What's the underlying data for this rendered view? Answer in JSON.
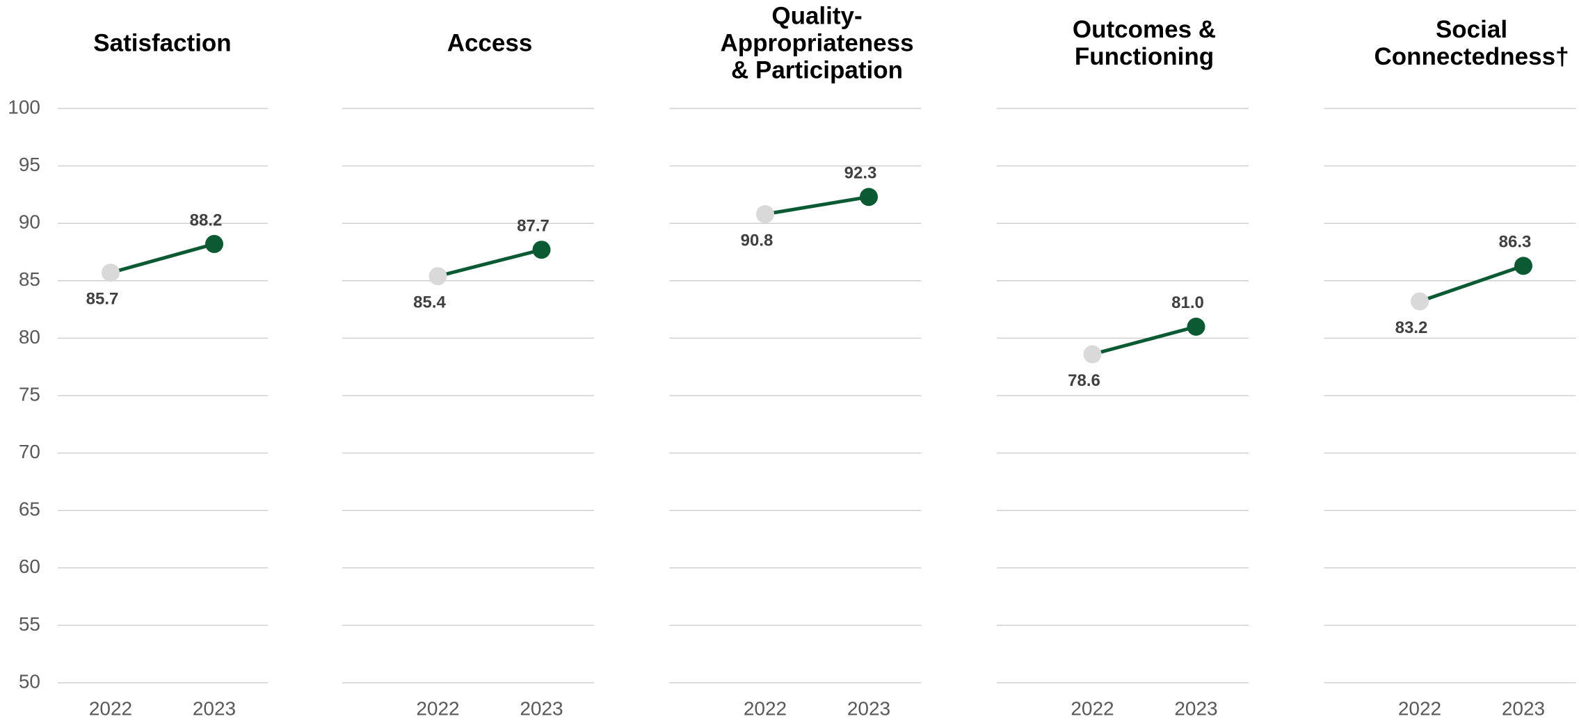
{
  "chart_data": [
    {
      "type": "line",
      "title": [
        "Satisfaction"
      ],
      "categories": [
        "2022",
        "2023"
      ],
      "values": [
        85.7,
        88.2
      ],
      "point_colors": [
        "#d9d9d9",
        "#0b5a34"
      ],
      "line_color": "#0b5a34",
      "ylim": [
        50,
        100
      ],
      "yticks": [
        50,
        55,
        60,
        65,
        70,
        75,
        80,
        85,
        90,
        95,
        100
      ],
      "grid": true
    },
    {
      "type": "line",
      "title": [
        "Access"
      ],
      "categories": [
        "2022",
        "2023"
      ],
      "values": [
        85.4,
        87.7
      ],
      "point_colors": [
        "#d9d9d9",
        "#0b5a34"
      ],
      "line_color": "#0b5a34",
      "ylim": [
        50,
        100
      ],
      "yticks": [
        50,
        55,
        60,
        65,
        70,
        75,
        80,
        85,
        90,
        95,
        100
      ],
      "grid": true
    },
    {
      "type": "line",
      "title": [
        "Quality-",
        "Appropriateness",
        "& Participation"
      ],
      "categories": [
        "2022",
        "2023"
      ],
      "values": [
        90.8,
        92.3
      ],
      "point_colors": [
        "#d9d9d9",
        "#0b5a34"
      ],
      "line_color": "#0b5a34",
      "ylim": [
        50,
        100
      ],
      "yticks": [
        50,
        55,
        60,
        65,
        70,
        75,
        80,
        85,
        90,
        95,
        100
      ],
      "grid": true
    },
    {
      "type": "line",
      "title": [
        "Outcomes &",
        "Functioning"
      ],
      "categories": [
        "2022",
        "2023"
      ],
      "values": [
        78.6,
        81
      ],
      "value_labels": [
        "78.6",
        "81.0"
      ],
      "point_colors": [
        "#d9d9d9",
        "#0b5a34"
      ],
      "line_color": "#0b5a34",
      "ylim": [
        50,
        100
      ],
      "yticks": [
        50,
        55,
        60,
        65,
        70,
        75,
        80,
        85,
        90,
        95,
        100
      ],
      "grid": true
    },
    {
      "type": "line",
      "title": [
        "Social",
        "Connectedness†"
      ],
      "categories": [
        "2022",
        "2023"
      ],
      "values": [
        83.2,
        86.3
      ],
      "point_colors": [
        "#d9d9d9",
        "#0b5a34"
      ],
      "line_color": "#0b5a34",
      "ylim": [
        50,
        100
      ],
      "yticks": [
        50,
        55,
        60,
        65,
        70,
        75,
        80,
        85,
        90,
        95,
        100
      ],
      "grid": true
    }
  ]
}
